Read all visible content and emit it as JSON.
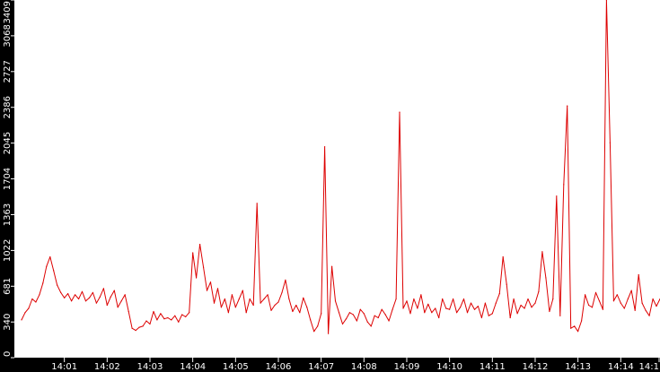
{
  "chart_data": {
    "type": "line",
    "title": "",
    "xlabel": "",
    "ylabel": "",
    "colors": {
      "line": "#dd0000",
      "axis_band": "#000000",
      "plot_background": "#ffffff",
      "tick_text": "#ffffff"
    },
    "ylim": [
      0,
      3409
    ],
    "y_ticks": [
      {
        "value": 0,
        "label": "0"
      },
      {
        "value": 340,
        "label": "340"
      },
      {
        "value": 681,
        "label": "681"
      },
      {
        "value": 1022,
        "label": "1022"
      },
      {
        "value": 1363,
        "label": "1363"
      },
      {
        "value": 1704,
        "label": "1704"
      },
      {
        "value": 2045,
        "label": "2045"
      },
      {
        "value": 2386,
        "label": "2386"
      },
      {
        "value": 2727,
        "label": "2727"
      },
      {
        "value": 3068,
        "label": "3068"
      },
      {
        "value": 3409,
        "label": "3409"
      }
    ],
    "xlim": [
      "14:00:00",
      "14:14:55"
    ],
    "x_ticks": [
      {
        "time": "14:01:00",
        "label": "14:01"
      },
      {
        "time": "14:02:00",
        "label": "14:02"
      },
      {
        "time": "14:03:00",
        "label": "14:03"
      },
      {
        "time": "14:04:00",
        "label": "14:04"
      },
      {
        "time": "14:05:00",
        "label": "14:05"
      },
      {
        "time": "14:06:00",
        "label": "14:06"
      },
      {
        "time": "14:07:00",
        "label": "14:07"
      },
      {
        "time": "14:08:00",
        "label": "14:08"
      },
      {
        "time": "14:09:00",
        "label": "14:09"
      },
      {
        "time": "14:10:00",
        "label": "14:10"
      },
      {
        "time": "14:11:00",
        "label": "14:11"
      },
      {
        "time": "14:12:00",
        "label": "14:12"
      },
      {
        "time": "14:13:00",
        "label": "14:13"
      },
      {
        "time": "14:14:00",
        "label": "14:14"
      },
      {
        "time": "14:15:00",
        "label": "14:1"
      }
    ],
    "grid": false,
    "legend": "none",
    "series": [
      {
        "x": [
          "14:00:00",
          "14:00:05",
          "14:00:10",
          "14:00:15",
          "14:00:20",
          "14:00:25",
          "14:00:30",
          "14:00:35",
          "14:00:40",
          "14:00:45",
          "14:00:50",
          "14:00:55",
          "14:01:00",
          "14:01:05",
          "14:01:10",
          "14:01:15",
          "14:01:20",
          "14:01:25",
          "14:01:30",
          "14:01:35",
          "14:01:40",
          "14:01:45",
          "14:01:50",
          "14:01:55",
          "14:02:00",
          "14:02:05",
          "14:02:10",
          "14:02:15",
          "14:02:20",
          "14:02:25",
          "14:02:30",
          "14:02:35",
          "14:02:40",
          "14:02:45",
          "14:02:50",
          "14:02:55",
          "14:03:00",
          "14:03:05",
          "14:03:10",
          "14:03:15",
          "14:03:20",
          "14:03:25",
          "14:03:30",
          "14:03:35",
          "14:03:40",
          "14:03:45",
          "14:03:50",
          "14:03:55",
          "14:04:00",
          "14:04:05",
          "14:04:10",
          "14:04:15",
          "14:04:20",
          "14:04:25",
          "14:04:30",
          "14:04:35",
          "14:04:40",
          "14:04:45",
          "14:04:50",
          "14:04:55",
          "14:05:00",
          "14:05:05",
          "14:05:10",
          "14:05:15",
          "14:05:20",
          "14:05:25",
          "14:05:30",
          "14:05:35",
          "14:05:40",
          "14:05:45",
          "14:05:50",
          "14:05:55",
          "14:06:00",
          "14:06:05",
          "14:06:10",
          "14:06:15",
          "14:06:20",
          "14:06:25",
          "14:06:30",
          "14:06:35",
          "14:06:40",
          "14:06:45",
          "14:06:50",
          "14:06:55",
          "14:07:00",
          "14:07:05",
          "14:07:10",
          "14:07:15",
          "14:07:20",
          "14:07:25",
          "14:07:30",
          "14:07:35",
          "14:07:40",
          "14:07:45",
          "14:07:50",
          "14:07:55",
          "14:08:00",
          "14:08:05",
          "14:08:10",
          "14:08:15",
          "14:08:20",
          "14:08:25",
          "14:08:30",
          "14:08:35",
          "14:08:40",
          "14:08:45",
          "14:08:50",
          "14:08:55",
          "14:09:00",
          "14:09:05",
          "14:09:10",
          "14:09:15",
          "14:09:20",
          "14:09:25",
          "14:09:30",
          "14:09:35",
          "14:09:40",
          "14:09:45",
          "14:09:50",
          "14:09:55",
          "14:10:00",
          "14:10:05",
          "14:10:10",
          "14:10:15",
          "14:10:20",
          "14:10:25",
          "14:10:30",
          "14:10:35",
          "14:10:40",
          "14:10:45",
          "14:10:50",
          "14:10:55",
          "14:11:00",
          "14:11:05",
          "14:11:10",
          "14:11:15",
          "14:11:20",
          "14:11:25",
          "14:11:30",
          "14:11:35",
          "14:11:40",
          "14:11:45",
          "14:11:50",
          "14:11:55",
          "14:12:00",
          "14:12:05",
          "14:12:10",
          "14:12:15",
          "14:12:20",
          "14:12:25",
          "14:12:30",
          "14:12:35",
          "14:12:40",
          "14:12:45",
          "14:12:50",
          "14:12:55",
          "14:13:00",
          "14:13:05",
          "14:13:10",
          "14:13:15",
          "14:13:20",
          "14:13:25",
          "14:13:30",
          "14:13:35",
          "14:13:40",
          "14:13:45",
          "14:13:50",
          "14:13:55",
          "14:14:00",
          "14:14:05",
          "14:14:10",
          "14:14:15",
          "14:14:20",
          "14:14:25",
          "14:14:30",
          "14:14:35",
          "14:14:40",
          "14:14:45",
          "14:14:50",
          "14:14:55"
        ],
        "values": [
          360,
          430,
          470,
          560,
          530,
          600,
          710,
          870,
          960,
          830,
          690,
          620,
          570,
          610,
          540,
          600,
          560,
          630,
          540,
          570,
          620,
          520,
          580,
          660,
          500,
          580,
          640,
          480,
          540,
          600,
          440,
          280,
          260,
          290,
          300,
          350,
          320,
          440,
          360,
          420,
          370,
          380,
          360,
          400,
          340,
          410,
          390,
          430,
          1000,
          760,
          1080,
          860,
          640,
          720,
          520,
          660,
          480,
          560,
          430,
          600,
          480,
          560,
          640,
          430,
          560,
          500,
          1470,
          520,
          560,
          600,
          450,
          500,
          530,
          620,
          740,
          560,
          440,
          500,
          430,
          570,
          480,
          360,
          250,
          300,
          420,
          2010,
          230,
          870,
          540,
          430,
          320,
          370,
          430,
          410,
          350,
          460,
          420,
          340,
          300,
          400,
          380,
          460,
          410,
          350,
          460,
          560,
          2340,
          470,
          540,
          420,
          560,
          470,
          600,
          430,
          510,
          430,
          470,
          380,
          560,
          470,
          460,
          560,
          430,
          480,
          560,
          430,
          520,
          460,
          490,
          380,
          520,
          400,
          420,
          520,
          610,
          960,
          700,
          380,
          560,
          420,
          500,
          470,
          560,
          480,
          520,
          630,
          1010,
          760,
          440,
          560,
          1540,
          400,
          1650,
          2400,
          280,
          300,
          250,
          350,
          600,
          500,
          480,
          620,
          540,
          460,
          3409,
          2050,
          540,
          600,
          520,
          470,
          560,
          640,
          450,
          790,
          520,
          450,
          400,
          560,
          490,
          560
        ]
      }
    ]
  }
}
